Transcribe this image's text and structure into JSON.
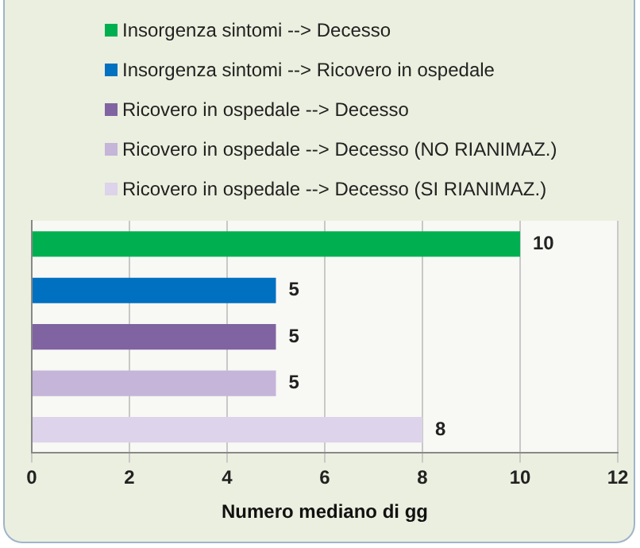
{
  "chart_data": {
    "type": "bar",
    "orientation": "horizontal",
    "xlabel": "Numero mediano di gg",
    "categories": [
      null,
      null,
      null,
      null,
      null
    ],
    "series": [
      {
        "name": "Insorgenza sintomi --> Decesso",
        "color": "#00b050",
        "values": [
          10,
          null,
          null,
          null,
          null
        ]
      },
      {
        "name": "Insorgenza sintomi --> Ricovero in ospedale",
        "color": "#0070c0",
        "values": [
          null,
          5,
          null,
          null,
          null
        ]
      },
      {
        "name": "Ricovero in ospedale --> Decesso",
        "color": "#8064a2",
        "values": [
          null,
          null,
          5,
          null,
          null
        ]
      },
      {
        "name": "Ricovero in ospedale --> Decesso (NO RIANIMAZ.)",
        "color": "#c4b5d9",
        "values": [
          null,
          null,
          null,
          5,
          null
        ]
      },
      {
        "name": "Ricovero in ospedale --> Decesso (SI RIANIMAZ.)",
        "color": "#ddd3ea",
        "values": [
          null,
          null,
          null,
          null,
          8
        ]
      }
    ],
    "xlim": [
      0,
      12
    ],
    "xticks": [
      0,
      2,
      4,
      6,
      8,
      10,
      12
    ],
    "grid": "x",
    "legend": "top",
    "tick_labels": "x",
    "data_labels": true
  }
}
